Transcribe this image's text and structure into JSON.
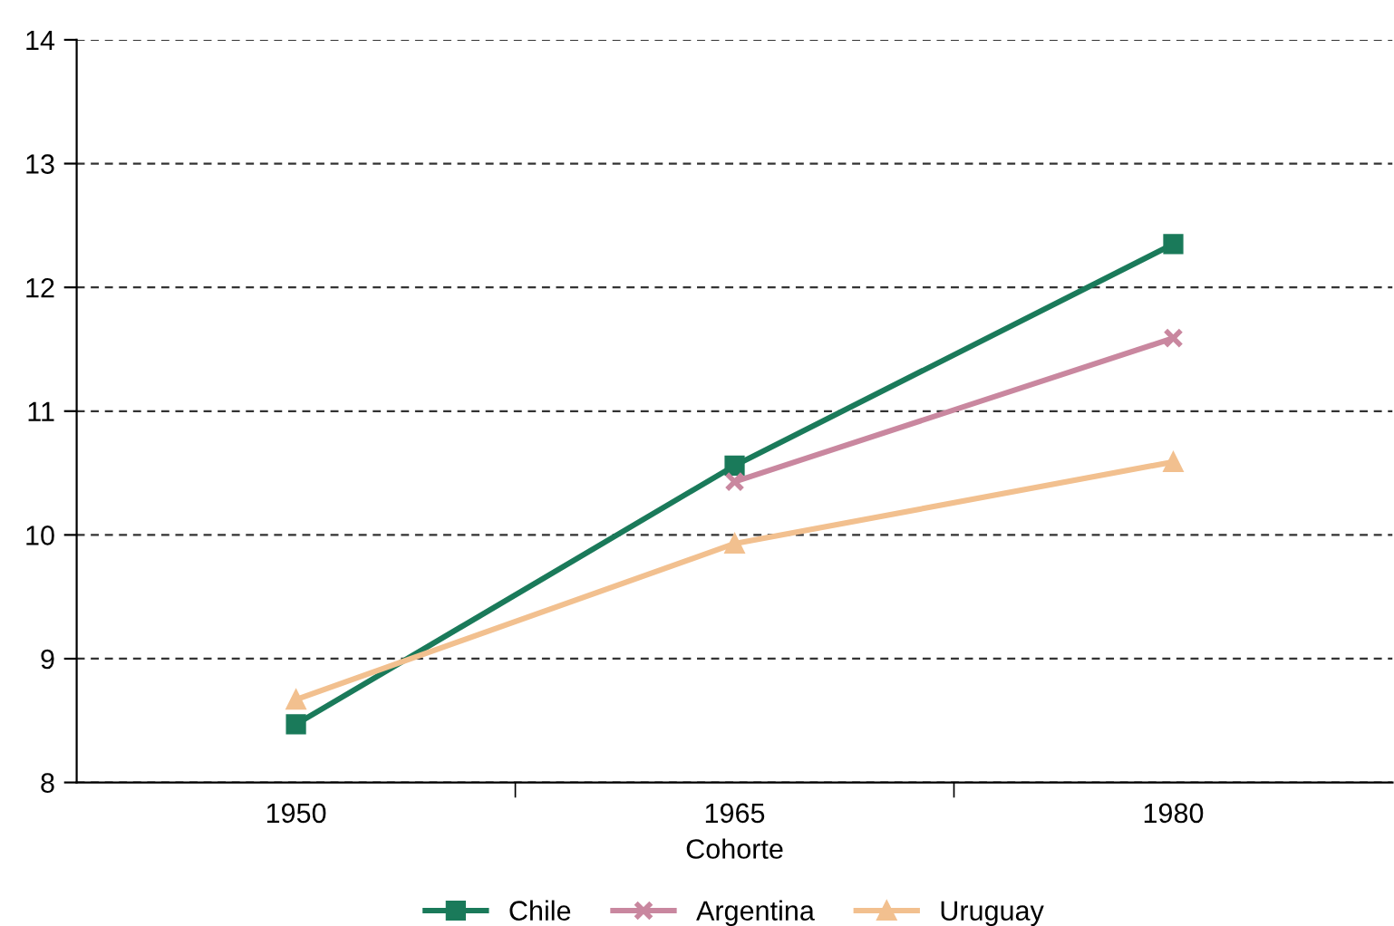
{
  "chart_data": {
    "type": "line",
    "xlabel": "Cohorte",
    "categories": [
      "1950",
      "1965",
      "1980"
    ],
    "series": [
      {
        "name": "Chile",
        "color": "#1a7a5a",
        "marker": "square",
        "values": [
          8.47,
          10.56,
          12.35
        ]
      },
      {
        "name": "Argentina",
        "color": "#c9879f",
        "marker": "cross",
        "values": [
          null,
          10.43,
          11.59
        ]
      },
      {
        "name": "Uruguay",
        "color": "#f2c08f",
        "marker": "triangle",
        "values": [
          8.67,
          9.93,
          10.59
        ]
      }
    ],
    "ylim": [
      8,
      14
    ],
    "yticks": [
      8,
      9,
      10,
      11,
      12,
      13,
      14
    ],
    "grid": "y",
    "legend": "bottom",
    "line_style": "solid"
  }
}
